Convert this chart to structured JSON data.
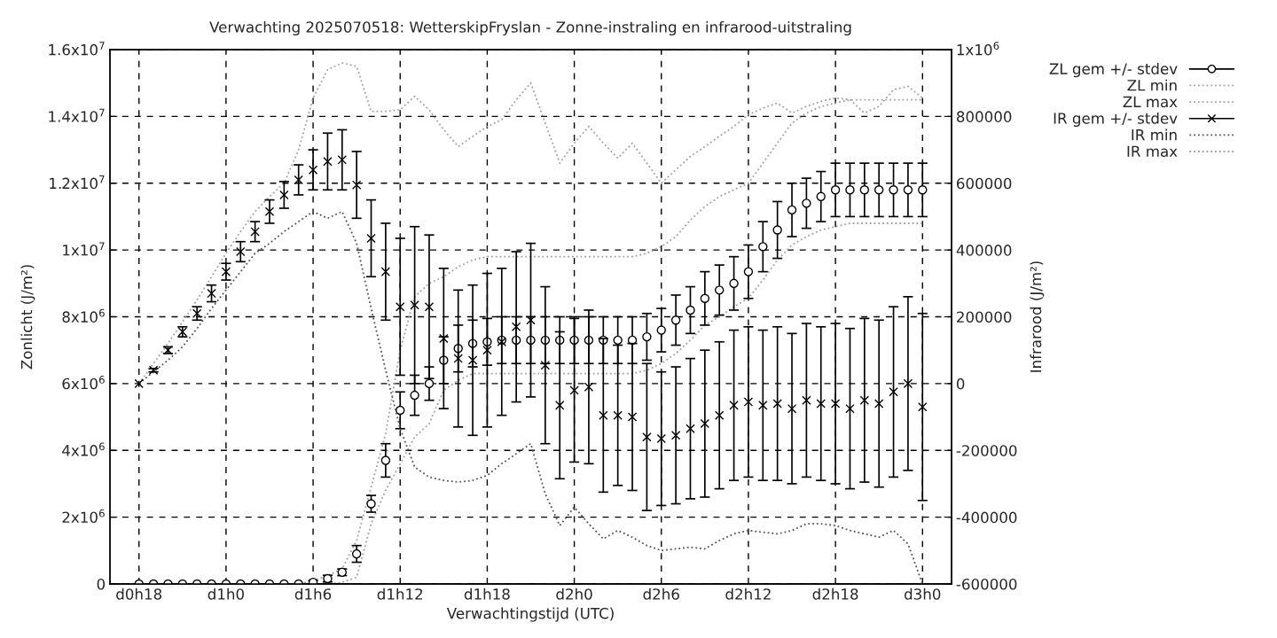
{
  "chart_data": {
    "type": "line",
    "title": "Verwachting 2025070518: WetterskipFryslan - Zonne-instraling en infrarood-uitstraling",
    "xlabel": "Verwachtingstijd (UTC)",
    "ylabel": "Zonlicht (J/m²)",
    "y2label": "Infrarood (J/m²)",
    "categories": [
      "d0h18",
      null,
      null,
      null,
      null,
      null,
      "d1h0",
      null,
      null,
      null,
      null,
      null,
      "d1h6",
      null,
      null,
      null,
      null,
      null,
      "d1h12",
      null,
      null,
      null,
      null,
      null,
      "d1h18",
      null,
      null,
      null,
      null,
      null,
      "d2h0",
      null,
      null,
      null,
      null,
      null,
      "d2h6",
      null,
      null,
      null,
      null,
      null,
      "d2h12",
      null,
      null,
      null,
      null,
      null,
      "d2h18",
      null,
      null,
      null,
      null,
      null,
      "d3h0"
    ],
    "ylim": [
      0,
      16000000
    ],
    "yticks": [
      0,
      {
        "value": 2000000,
        "label": "2x10$^{6}$"
      },
      {
        "value": 4000000,
        "label": "4x10$^{6}$"
      },
      {
        "value": 6000000,
        "label": "6x10$^{6}$"
      },
      {
        "value": 8000000,
        "label": "8x10$^{6}$"
      },
      {
        "value": 10000000,
        "label": "1x10$^{7}$"
      },
      {
        "value": 12000000,
        "label": "1.2x10$^{7}$"
      },
      {
        "value": 14000000,
        "label": "1.4x10$^{7}$"
      },
      {
        "value": 16000000,
        "label": "1.6x10$^{7}$"
      }
    ],
    "y2lim": [
      -600000,
      1000000
    ],
    "y2ticks": [
      -600000,
      -400000,
      -200000,
      0,
      200000,
      400000,
      600000,
      800000,
      {
        "value": 1000000,
        "label": "1x10$^{6}$"
      }
    ],
    "grid": true,
    "legend": "top right",
    "series": [
      {
        "name": "ZL gem +/- stdev",
        "type": "scatter",
        "marker": "circle",
        "color": "#000000",
        "values": [
          0,
          0,
          0,
          0,
          0,
          0,
          0,
          0,
          0,
          0,
          0,
          0,
          50000,
          160000,
          350000,
          900000,
          2400000,
          3700000,
          5200000,
          5650000,
          6000000,
          6700000,
          7050000,
          7200000,
          7250000,
          7300000,
          7300000,
          7300000,
          7300000,
          7300000,
          7300000,
          7300000,
          7300000,
          7300000,
          7300000,
          7400000,
          7600000,
          7900000,
          8200000,
          8550000,
          8800000,
          9000000,
          9350000,
          10100000,
          10600000,
          11200000,
          11400000,
          11600000,
          11800000,
          11800000,
          11800000,
          11800000,
          11800000,
          11800000,
          11800000
        ],
        "errors": [
          null,
          null,
          null,
          null,
          null,
          null,
          null,
          null,
          null,
          null,
          null,
          null,
          50000,
          100000,
          100000,
          250000,
          250000,
          500000,
          550000,
          600000,
          500000,
          700000,
          700000,
          700000,
          700000,
          700000,
          700000,
          700000,
          700000,
          700000,
          700000,
          700000,
          700000,
          700000,
          700000,
          700000,
          650000,
          750000,
          700000,
          800000,
          750000,
          800000,
          800000,
          750000,
          850000,
          800000,
          750000,
          750000,
          800000,
          800000,
          800000,
          800000,
          800000,
          800000,
          800000
        ]
      },
      {
        "name": "ZL min",
        "line_style": "dotted",
        "color": "#a0a0a0",
        "values": [
          0,
          0,
          0,
          0,
          0,
          0,
          0,
          0,
          0,
          0,
          0,
          0,
          0,
          0,
          50000,
          200000,
          1800000,
          2800000,
          3600000,
          4400000,
          4800000,
          5800000,
          6100000,
          6300000,
          6300000,
          6300000,
          6300000,
          6300000,
          6300000,
          6300000,
          6300000,
          6300000,
          6300000,
          6300000,
          6300000,
          6400000,
          6600000,
          6900000,
          7300000,
          7750000,
          8000000,
          8300000,
          8550000,
          9100000,
          9700000,
          10150000,
          10400000,
          10600000,
          10700000,
          10800000,
          10800000,
          10800000,
          10800000,
          10800000,
          10800000
        ]
      },
      {
        "name": "ZL max",
        "line_style": "dotted",
        "color": "#a0a0a0",
        "values": [
          0,
          0,
          0,
          0,
          0,
          0,
          0,
          0,
          0,
          0,
          0,
          0,
          100000,
          250000,
          450000,
          1300000,
          2900000,
          4500000,
          7000000,
          8600000,
          9000000,
          9200000,
          9500000,
          9700000,
          9800000,
          9800000,
          9800000,
          9800000,
          9800000,
          9800000,
          9800000,
          9800000,
          9800000,
          9800000,
          9800000,
          9900000,
          10100000,
          10400000,
          10900000,
          11300000,
          11600000,
          11800000,
          12000000,
          12600000,
          13200000,
          13800000,
          14100000,
          14300000,
          14400000,
          14500000,
          14500000,
          14500000,
          14500000,
          14500000,
          14500000
        ]
      },
      {
        "name": "IR gem +/- stdev",
        "type": "scatter",
        "marker": "cross",
        "axis": "y2",
        "color": "#000000",
        "values": [
          0,
          40000,
          100000,
          155000,
          210000,
          270000,
          335000,
          395000,
          455000,
          515000,
          565000,
          610000,
          640000,
          665000,
          670000,
          595000,
          435000,
          335000,
          230000,
          235000,
          230000,
          135000,
          75000,
          70000,
          100000,
          125000,
          170000,
          190000,
          55000,
          -65000,
          -20000,
          -10000,
          -95000,
          -95000,
          -100000,
          -160000,
          -165000,
          -155000,
          -135000,
          -120000,
          -95000,
          -65000,
          -55000,
          -65000,
          -60000,
          -75000,
          -50000,
          -60000,
          -60000,
          -75000,
          -50000,
          -60000,
          -25000,
          0,
          -70000
        ],
        "errors": [
          null,
          5000,
          10000,
          15000,
          20000,
          25000,
          25000,
          30000,
          30000,
          35000,
          40000,
          45000,
          60000,
          85000,
          90000,
          100000,
          115000,
          145000,
          205000,
          235000,
          215000,
          210000,
          205000,
          225000,
          230000,
          220000,
          225000,
          230000,
          235000,
          220000,
          215000,
          230000,
          230000,
          210000,
          220000,
          220000,
          200000,
          205000,
          210000,
          220000,
          220000,
          225000,
          225000,
          225000,
          230000,
          225000,
          230000,
          230000,
          240000,
          240000,
          245000,
          250000,
          255000,
          260000,
          280000
        ]
      },
      {
        "name": "IR min",
        "line_style": "dotted",
        "axis": "y2",
        "color": "#555555",
        "values": [
          0,
          35000,
          70000,
          110000,
          165000,
          225000,
          280000,
          335000,
          390000,
          420000,
          455000,
          485000,
          515000,
          495000,
          515000,
          420000,
          225000,
          40000,
          -135000,
          -250000,
          -280000,
          -290000,
          -295000,
          -290000,
          -275000,
          -240000,
          -210000,
          -180000,
          -330000,
          -425000,
          -370000,
          -420000,
          -465000,
          -440000,
          -460000,
          -485000,
          -500000,
          -495000,
          -490000,
          -495000,
          -470000,
          -450000,
          -440000,
          -445000,
          -450000,
          -440000,
          -420000,
          -420000,
          -425000,
          -440000,
          -450000,
          -460000,
          -440000,
          -480000,
          -600000
        ]
      },
      {
        "name": "IR max",
        "line_style": "dotted",
        "axis": "y2",
        "color": "#a0a0a0",
        "values": [
          0,
          60000,
          120000,
          185000,
          250000,
          320000,
          390000,
          455000,
          515000,
          560000,
          600000,
          700000,
          855000,
          940000,
          960000,
          950000,
          815000,
          815000,
          820000,
          860000,
          820000,
          760000,
          710000,
          740000,
          770000,
          790000,
          850000,
          900000,
          780000,
          660000,
          720000,
          770000,
          720000,
          675000,
          720000,
          660000,
          600000,
          640000,
          680000,
          710000,
          740000,
          770000,
          805000,
          825000,
          840000,
          810000,
          830000,
          845000,
          855000,
          850000,
          810000,
          830000,
          880000,
          890000,
          855000
        ]
      }
    ]
  }
}
